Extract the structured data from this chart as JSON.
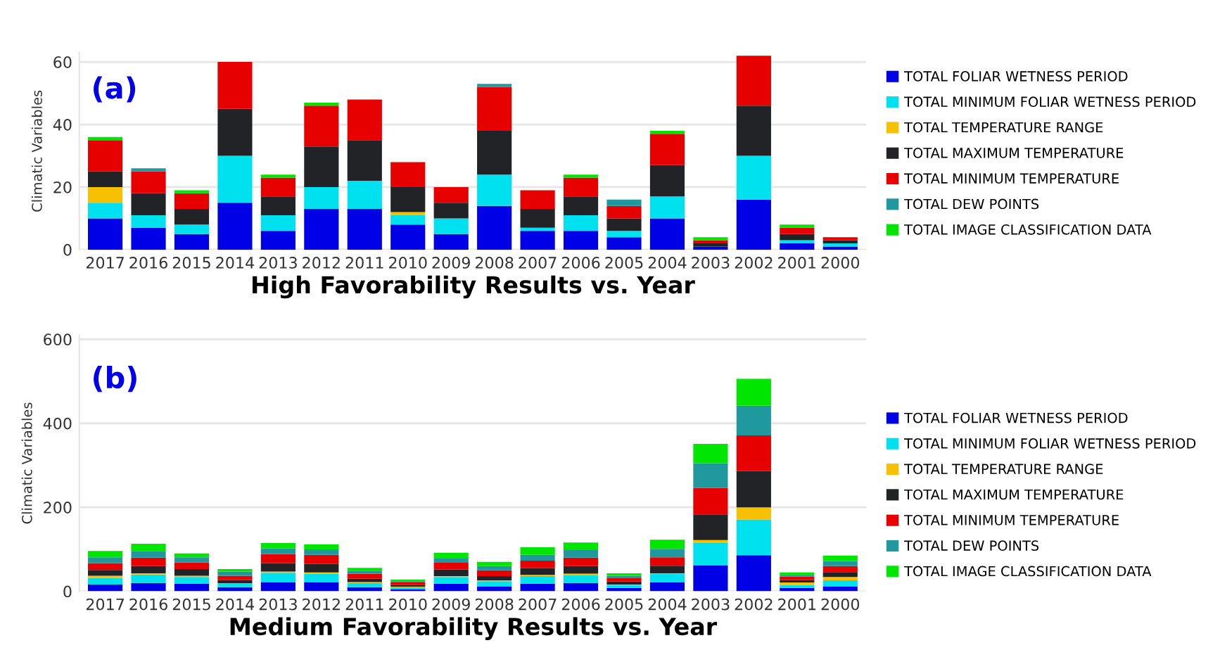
{
  "chart_data": [
    {
      "type": "bar",
      "stacked": true,
      "ylabel": "Climatic Variables",
      "xlabel": "High Favorability Results vs. Year",
      "annotations": [
        "(a)"
      ],
      "categories": [
        "2017",
        "2016",
        "2015",
        "2014",
        "2013",
        "2012",
        "2011",
        "2010",
        "2009",
        "2008",
        "2007",
        "2006",
        "2005",
        "2004",
        "2003",
        "2002",
        "2001",
        "2000"
      ],
      "ylim": [
        0,
        63
      ],
      "yticks": [
        0,
        20,
        40,
        60
      ],
      "grid": "y",
      "legend": "right",
      "series": [
        {
          "name": "TOTAL FOLIAR WETNESS PERIOD",
          "color": "#0000e6",
          "values": [
            10,
            7,
            5,
            15,
            6,
            13,
            13,
            8,
            5,
            14,
            6,
            6,
            4,
            10,
            1,
            16,
            2,
            1
          ]
        },
        {
          "name": "TOTAL MINIMUM FOLIAR WETNESS PERIOD",
          "color": "#00e1f0",
          "values": [
            5,
            4,
            3,
            15,
            5,
            7,
            9,
            3,
            5,
            10,
            1,
            5,
            2,
            7,
            0,
            14,
            1,
            1
          ]
        },
        {
          "name": "TOTAL TEMPERATURE RANGE",
          "color": "#f7c000",
          "values": [
            5,
            0,
            0,
            0,
            0,
            0,
            0,
            1,
            0,
            0,
            0,
            0,
            0,
            0,
            0,
            0,
            0,
            0
          ]
        },
        {
          "name": "TOTAL MAXIMUM TEMPERATURE",
          "color": "#222327",
          "values": [
            5,
            7,
            5,
            15,
            6,
            13,
            13,
            8,
            5,
            14,
            6,
            6,
            4,
            10,
            1,
            16,
            2,
            1
          ]
        },
        {
          "name": "TOTAL MINIMUM TEMPERATURE",
          "color": "#e60000",
          "values": [
            10,
            7,
            5,
            15,
            6,
            13,
            13,
            8,
            5,
            14,
            6,
            6,
            4,
            10,
            1,
            16,
            2,
            1
          ]
        },
        {
          "name": "TOTAL DEW POINTS",
          "color": "#20999e",
          "values": [
            0,
            1,
            0,
            0,
            0,
            0,
            0,
            0,
            0,
            1,
            0,
            0,
            2,
            0,
            0,
            0,
            0,
            0
          ]
        },
        {
          "name": "TOTAL IMAGE CLASSIFICATION DATA",
          "color": "#00e600",
          "values": [
            1,
            0,
            1,
            0,
            1,
            1,
            0,
            0,
            0,
            0,
            0,
            1,
            0,
            1,
            1,
            0,
            1,
            0
          ]
        }
      ]
    },
    {
      "type": "bar",
      "stacked": true,
      "ylabel": "Climatic Variables",
      "xlabel": "Medium Favorability Results vs. Year",
      "annotations": [
        "(b)"
      ],
      "categories": [
        "2017",
        "2016",
        "2015",
        "2014",
        "2013",
        "2012",
        "2011",
        "2010",
        "2009",
        "2008",
        "2007",
        "2006",
        "2005",
        "2004",
        "2003",
        "2002",
        "2001",
        "2000"
      ],
      "ylim": [
        0,
        610
      ],
      "yticks": [
        0,
        200,
        400,
        600
      ],
      "grid": "y",
      "legend": "right",
      "series": [
        {
          "name": "TOTAL FOLIAR WETNESS PERIOD",
          "color": "#0000e6",
          "values": [
            16,
            20,
            18,
            10,
            22,
            22,
            10,
            5,
            18,
            12,
            18,
            20,
            8,
            21,
            62,
            86,
            8,
            12
          ]
        },
        {
          "name": "TOTAL MINIMUM FOLIAR WETNESS PERIOD",
          "color": "#00e1f0",
          "values": [
            16,
            20,
            16,
            8,
            22,
            20,
            10,
            5,
            16,
            12,
            18,
            18,
            7,
            20,
            54,
            85,
            7,
            14
          ]
        },
        {
          "name": "TOTAL TEMPERATURE RANGE",
          "color": "#f7c000",
          "values": [
            5,
            3,
            3,
            1,
            3,
            3,
            2,
            1,
            2,
            2,
            3,
            4,
            1,
            2,
            6,
            29,
            6,
            8
          ]
        },
        {
          "name": "TOTAL MAXIMUM TEMPERATURE",
          "color": "#222327",
          "values": [
            14,
            17,
            16,
            8,
            20,
            20,
            8,
            4,
            16,
            10,
            16,
            18,
            7,
            18,
            61,
            86,
            6,
            12
          ]
        },
        {
          "name": "TOTAL MINIMUM TEMPERATURE",
          "color": "#e60000",
          "values": [
            16,
            20,
            16,
            10,
            22,
            22,
            12,
            6,
            16,
            14,
            18,
            20,
            8,
            20,
            63,
            85,
            8,
            14
          ]
        },
        {
          "name": "TOTAL DEW POINTS",
          "color": "#20999e",
          "values": [
            14,
            16,
            12,
            10,
            13,
            13,
            7,
            3,
            10,
            10,
            14,
            18,
            6,
            20,
            59,
            71,
            4,
            12
          ]
        },
        {
          "name": "TOTAL IMAGE CLASSIFICATION DATA",
          "color": "#00e600",
          "values": [
            15,
            17,
            9,
            6,
            13,
            12,
            7,
            4,
            14,
            10,
            18,
            18,
            6,
            22,
            46,
            64,
            6,
            13
          ]
        }
      ]
    }
  ]
}
